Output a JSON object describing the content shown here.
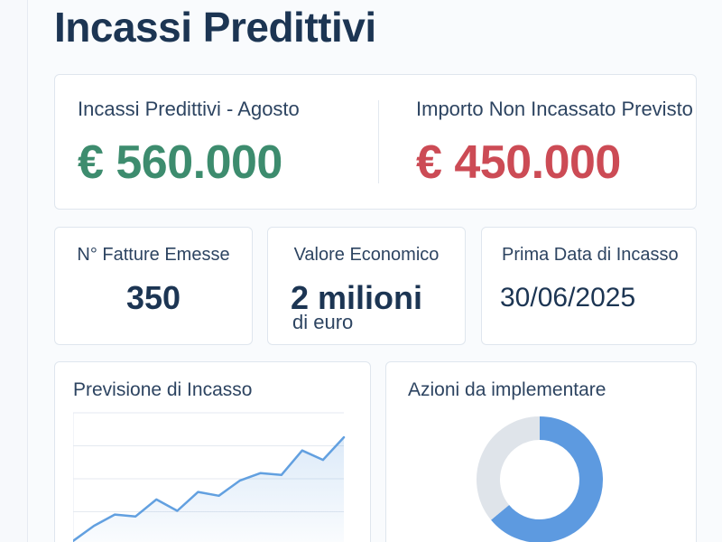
{
  "page": {
    "title": "Incassi Predittivi"
  },
  "kpi": {
    "forecast": {
      "label": "Incassi Predittivi - Agosto",
      "value": "€ 560.000",
      "color": "#3d8c6e"
    },
    "uncollected": {
      "label": "Importo Non Incassato Previsto",
      "value": "€ 450.000",
      "color": "#cc4b55"
    }
  },
  "stats": {
    "invoices": {
      "label": "N° Fatture Emesse",
      "value": "350"
    },
    "economic_value": {
      "label": "Valore Economico",
      "value": "2 milioni",
      "unit": "di euro"
    },
    "first_date": {
      "label": "Prima Data di Incasso",
      "value": "30/06/2025"
    }
  },
  "forecast_chart": {
    "title": "Previsione di Incasso"
  },
  "actions_chart": {
    "title": "Azioni da implementare"
  },
  "chart_data": [
    {
      "type": "area",
      "title": "Previsione di Incasso",
      "x": [
        0,
        1,
        2,
        3,
        4,
        5,
        6,
        7,
        8,
        9,
        10,
        11,
        12,
        13
      ],
      "values": [
        2,
        10,
        16,
        15,
        24,
        18,
        28,
        26,
        34,
        38,
        37,
        50,
        45,
        57
      ],
      "ylim": [
        0,
        70
      ],
      "grid": true,
      "color": "#62a0e0"
    },
    {
      "type": "pie",
      "title": "Azioni da implementare",
      "values": [
        64,
        36
      ],
      "colors": [
        "#5d9ae0",
        "#dfe4ea"
      ],
      "style": "donut"
    }
  ]
}
